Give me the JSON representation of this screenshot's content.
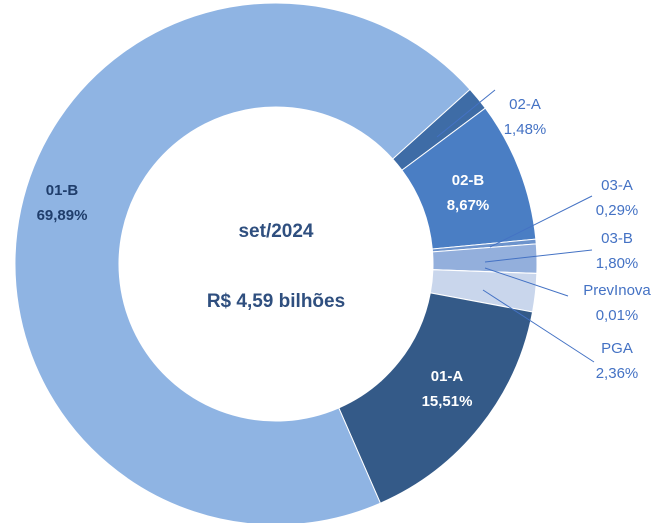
{
  "chart_data": {
    "type": "donut",
    "annotations": [
      "set/2024",
      "R$ 4,59 bilhões"
    ],
    "categories": [
      "02-A",
      "02-B",
      "03-A",
      "03-B",
      "PrevInova",
      "PGA",
      "01-A",
      "01-B"
    ],
    "values": [
      1.48,
      8.67,
      0.29,
      1.8,
      0.01,
      2.36,
      15.51,
      69.89
    ],
    "value_labels": [
      "1,48%",
      "8,67%",
      "0,29%",
      "1,80%",
      "0,01%",
      "2,36%",
      "15,51%",
      "69,89%"
    ],
    "colors": [
      "#3e6ca6",
      "#4a7ec4",
      "#6c93cc",
      "#93afdc",
      "#b0c4e6",
      "#c9d6ec",
      "#345a88",
      "#8fb4e3"
    ]
  }
}
